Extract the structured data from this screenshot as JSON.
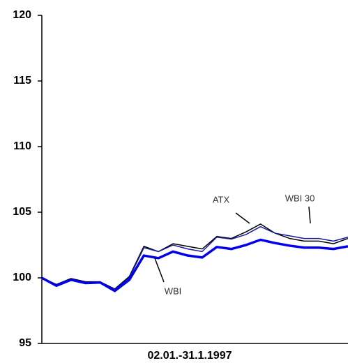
{
  "chart_data": {
    "type": "line",
    "x_label": "02.01.-31.1.1997",
    "categories": [
      null,
      null,
      null,
      null,
      null,
      null,
      null,
      null,
      null,
      null,
      null,
      null,
      null,
      null,
      null,
      null,
      null,
      null,
      null,
      null,
      null,
      null
    ],
    "series": [
      {
        "name": "ATX",
        "color": "#000000",
        "values": [
          100,
          99.5,
          99.95,
          99.7,
          99.7,
          99.15,
          100.1,
          102.4,
          102.0,
          102.6,
          102.4,
          102.2,
          103.15,
          103.0,
          103.5,
          104.1,
          103.4,
          103.0,
          102.8,
          102.8,
          102.6,
          103.0
        ]
      },
      {
        "name": "WBI 30",
        "color": "#1a1aa0",
        "values": [
          100,
          99.45,
          99.9,
          99.65,
          99.65,
          99.1,
          100.0,
          102.3,
          102.0,
          102.5,
          102.2,
          102.0,
          103.1,
          102.95,
          103.3,
          103.9,
          103.4,
          103.2,
          103.0,
          103.0,
          102.8,
          103.1
        ]
      },
      {
        "name": "WBI",
        "color": "#0000ee",
        "values": [
          100,
          99.4,
          99.85,
          99.6,
          99.65,
          99.0,
          99.85,
          101.7,
          101.5,
          102.0,
          101.7,
          101.55,
          102.35,
          102.2,
          102.5,
          102.9,
          102.65,
          102.45,
          102.3,
          102.3,
          102.2,
          102.4
        ]
      }
    ],
    "ylim": [
      95,
      120
    ],
    "yticks": [
      95,
      100,
      105,
      110,
      115,
      120
    ],
    "grid": false
  }
}
